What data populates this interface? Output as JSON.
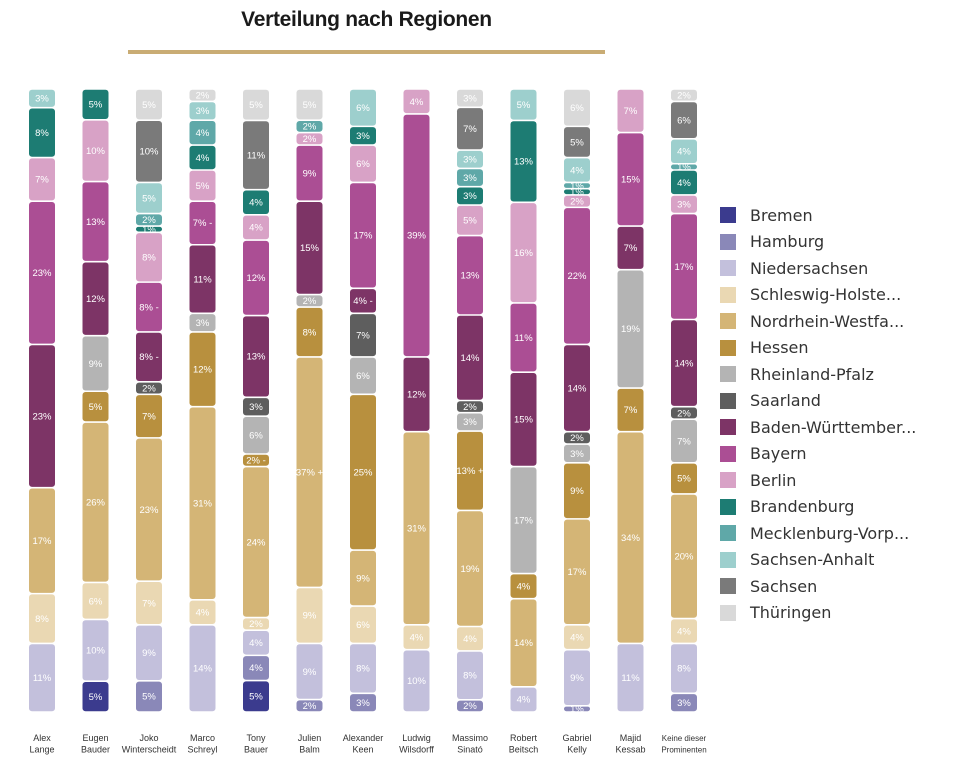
{
  "title": "Verteilung nach Regionen",
  "chart_data": {
    "type": "bar",
    "stacked": true,
    "normalized": true,
    "title": "Verteilung nach Regionen",
    "legend_position": "right",
    "categories": [
      [
        "Alex",
        "Lange"
      ],
      [
        "Eugen",
        "Bauder"
      ],
      [
        "Joko",
        "Winterscheidt"
      ],
      [
        "Marco",
        "Schreyl"
      ],
      [
        "Tony",
        "Bauer"
      ],
      [
        "Julien",
        "Balm"
      ],
      [
        "Alexander",
        "Keen"
      ],
      [
        "Ludwig",
        "Wilsdorff"
      ],
      [
        "Massimo",
        "Sinató"
      ],
      [
        "Robert",
        "Beitsch"
      ],
      [
        "Gabriel",
        "Kelly"
      ],
      [
        "Majid",
        "Kessab"
      ],
      [
        "Keine dieser",
        "Prominenten"
      ]
    ],
    "series": [
      {
        "name": "Bremen",
        "color": "#3b3b8e",
        "values": [
          0,
          5,
          0,
          0,
          5,
          0,
          0,
          0,
          0,
          0,
          0,
          0,
          0
        ]
      },
      {
        "name": "Hamburg",
        "color": "#8a88b8",
        "values": [
          0,
          0,
          5,
          0,
          4,
          2,
          3,
          0,
          2,
          0,
          1,
          0,
          3
        ]
      },
      {
        "name": "Niedersachsen",
        "color": "#c3c0dc",
        "values": [
          11,
          10,
          9,
          14,
          4,
          9,
          8,
          10,
          8,
          4,
          9,
          11,
          8
        ]
      },
      {
        "name": "Schleswig-Holste...",
        "color": "#ead8b3",
        "values": [
          8,
          6,
          7,
          4,
          2,
          9,
          6,
          4,
          4,
          0,
          4,
          0,
          4
        ]
      },
      {
        "name": "Nordrhein-Westfa...",
        "color": "#d4b576",
        "values": [
          17,
          26,
          23,
          31,
          24,
          37,
          9,
          31,
          19,
          14,
          17,
          34,
          20
        ]
      },
      {
        "name": "Hessen",
        "color": "#b8903e",
        "values": [
          0,
          5,
          7,
          12,
          2,
          8,
          25,
          0,
          13,
          4,
          9,
          7,
          5
        ]
      },
      {
        "name": "Rheinland-Pfalz",
        "color": "#b4b4b4",
        "values": [
          0,
          9,
          0,
          3,
          6,
          2,
          6,
          0,
          3,
          17,
          3,
          19,
          7
        ]
      },
      {
        "name": "Saarland",
        "color": "#5e5e5e",
        "values": [
          0,
          0,
          2,
          0,
          3,
          0,
          7,
          0,
          2,
          0,
          2,
          0,
          2
        ]
      },
      {
        "name": "Baden-Württember...",
        "color": "#7d3466",
        "values": [
          23,
          12,
          8,
          11,
          13,
          15,
          4,
          12,
          14,
          15,
          14,
          7,
          14
        ]
      },
      {
        "name": "Bayern",
        "color": "#ab4e94",
        "values": [
          23,
          13,
          8,
          7,
          12,
          9,
          17,
          39,
          13,
          11,
          22,
          15,
          17
        ]
      },
      {
        "name": "Berlin",
        "color": "#d8a2c6",
        "values": [
          7,
          10,
          8,
          5,
          4,
          2,
          6,
          4,
          5,
          16,
          2,
          7,
          3
        ]
      },
      {
        "name": "Brandenburg",
        "color": "#1d7c73",
        "values": [
          8,
          5,
          1,
          4,
          4,
          0,
          3,
          0,
          3,
          13,
          1,
          0,
          4
        ]
      },
      {
        "name": "Mecklenburg-Vorp...",
        "color": "#5fa8a8",
        "values": [
          0,
          0,
          2,
          4,
          0,
          2,
          0,
          0,
          3,
          0,
          1,
          0,
          1
        ]
      },
      {
        "name": "Sachsen-Anhalt",
        "color": "#9dcfcd",
        "values": [
          3,
          0,
          5,
          3,
          0,
          0,
          6,
          0,
          3,
          5,
          4,
          0,
          4
        ]
      },
      {
        "name": "Sachsen",
        "color": "#7a7a7a",
        "values": [
          0,
          0,
          10,
          0,
          11,
          0,
          0,
          0,
          7,
          0,
          5,
          0,
          6
        ]
      },
      {
        "name": "Thüringen",
        "color": "#d9d9d9",
        "values": [
          0,
          0,
          5,
          2,
          5,
          5,
          0,
          0,
          3,
          0,
          6,
          0,
          2
        ]
      }
    ],
    "data_labels": {
      "Bremen": [
        "",
        "5%",
        "",
        "",
        "5%",
        "",
        "",
        "",
        "",
        "",
        "",
        "",
        ""
      ],
      "Hamburg": [
        "",
        "",
        "5%",
        "",
        "4%",
        "2%",
        "3%",
        "",
        "2%",
        "",
        "1%",
        "",
        "3%"
      ],
      "Niedersachsen": [
        "11%",
        "10%",
        "9%",
        "14%",
        "4%",
        "9%",
        "8%",
        "10%",
        "8%",
        "4%",
        "9%",
        "11%",
        "8%"
      ],
      "Schleswig-Holste...": [
        "8%",
        "6%",
        "7%",
        "4%",
        "2%",
        "9%",
        "6%",
        "4%",
        "4%",
        "",
        "4%",
        "",
        "4%"
      ],
      "Nordrhein-Westfa...": [
        "17%",
        "26%",
        "23%",
        "31%",
        "24%",
        "37% +",
        "9%",
        "31%",
        "19%",
        "14%",
        "17%",
        "34%",
        "20%"
      ],
      "Hessen": [
        "",
        "5%",
        "7%",
        "12%",
        "2% -",
        "8%",
        "25%",
        "",
        "13% +",
        "4%",
        "9%",
        "7%",
        "5%"
      ],
      "Rheinland-Pfalz": [
        "",
        "9%",
        "",
        "3%",
        "6%",
        "2%",
        "6%",
        "",
        "3%",
        "17%",
        "3%",
        "19%",
        "7%"
      ],
      "Saarland": [
        "",
        "",
        "2%",
        "",
        "3%",
        "",
        "7%",
        "",
        "2%",
        "",
        "2%",
        "",
        "2%"
      ],
      "Baden-Württember...": [
        "23%",
        "12%",
        "8% -",
        "11%",
        "13%",
        "15%",
        "4% -",
        "12%",
        "14%",
        "15%",
        "14%",
        "7%",
        "14%"
      ],
      "Bayern": [
        "23%",
        "13%",
        "8% -",
        "7% -",
        "12%",
        "9%",
        "17%",
        "39%",
        "13%",
        "11%",
        "22%",
        "15%",
        "17%"
      ],
      "Berlin": [
        "7%",
        "10%",
        "8%",
        "5%",
        "4%",
        "2%",
        "6%",
        "4%",
        "5%",
        "16%",
        "2%",
        "7%",
        "3%"
      ],
      "Brandenburg": [
        "8%",
        "5%",
        "1%",
        "4%",
        "4%",
        "",
        "3%",
        "",
        "3%",
        "13%",
        "1%",
        "",
        "4%"
      ],
      "Mecklenburg-Vorp...": [
        "",
        "",
        "2%",
        "4%",
        "",
        "2%",
        "",
        "",
        "3%",
        "",
        "1%",
        "",
        "1%"
      ],
      "Sachsen-Anhalt": [
        "3%",
        "",
        "5%",
        "3%",
        "",
        "",
        "6%",
        "",
        "3%",
        "5%",
        "4%",
        "",
        "4%"
      ],
      "Sachsen": [
        "",
        "",
        "10%",
        "",
        "11%",
        "",
        "",
        "",
        "7%",
        "",
        "5%",
        "",
        "6%"
      ],
      "Thüringen": [
        "",
        "",
        "5%",
        "2%",
        "5%",
        "5%",
        "",
        "",
        "3%",
        "",
        "6%",
        "",
        "2%"
      ]
    }
  }
}
